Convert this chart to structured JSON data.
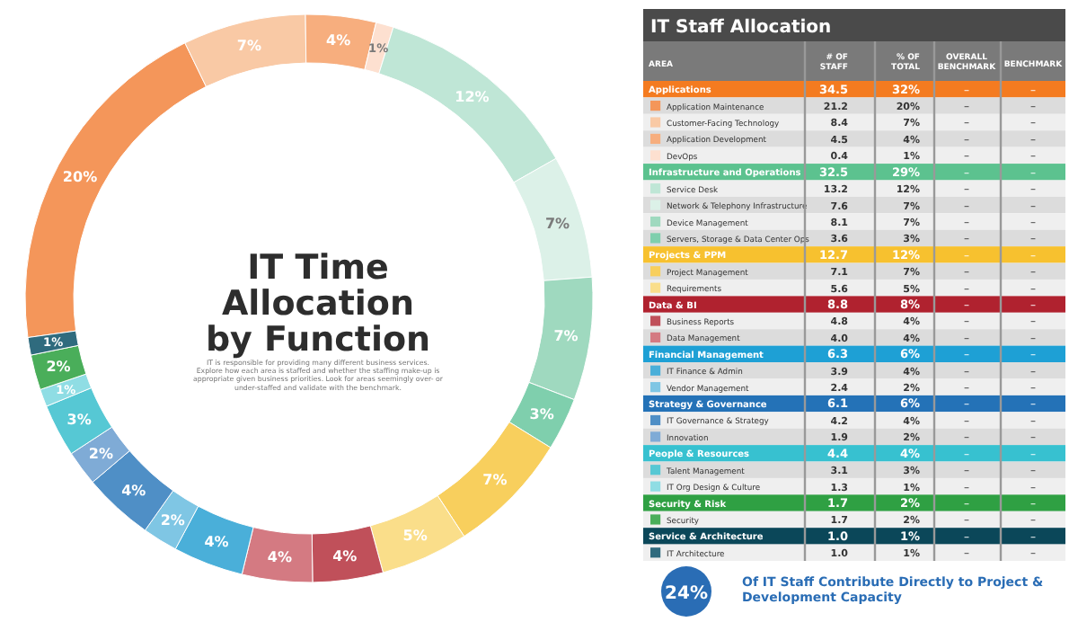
{
  "chart_data": [
    {
      "type": "donut",
      "title": "IT Time Allocation by Function",
      "subtitle": "IT is responsible for providing many different business services. Explore how each area is staffed and whether the staffing make-up is appropriate given business priorities. Look for areas seemingly over- or under-staffed and validate with the benchmark.",
      "categories": [
        null,
        null,
        null,
        null,
        null,
        null,
        null,
        null,
        null,
        null,
        null,
        null,
        null,
        null,
        null,
        null,
        null,
        null,
        null,
        null
      ],
      "values": [
        20,
        7,
        4,
        1,
        12,
        7,
        7,
        3,
        7,
        5,
        4,
        4,
        4,
        2,
        4,
        2,
        3,
        1,
        2,
        1
      ],
      "value_labels": [
        "20%",
        "7%",
        "4%",
        "1%",
        "12%",
        "7%",
        "7%",
        "3%",
        "7%",
        "5%",
        "4%",
        "4%",
        "4%",
        "2%",
        "4%",
        "2%",
        "3%",
        "1%",
        "2%",
        "1%"
      ],
      "colors": [
        "#f4965a",
        "#f9c9a5",
        "#f7ae7e",
        "#fde0d0",
        "#bfe6d6",
        "#dcf1e8",
        "#9fd9bf",
        "#7fcfad",
        "#f8cf5d",
        "#fade8a",
        "#c0505a",
        "#d47a82",
        "#4aafd9",
        "#7fc6e4",
        "#4f8fc6",
        "#7fabd6",
        "#56c8d4",
        "#8fdde4",
        "#4aae5a",
        "#2f6b7e"
      ]
    },
    {
      "type": "other",
      "title": "IT Staff Allocation",
      "xlabel": "AREA",
      "y2_categories": [
        "Applications",
        null,
        null,
        null,
        null,
        "Infrastructure and Operations",
        null,
        null,
        null,
        null,
        "Projects & PPM",
        null,
        null,
        "Data & BI",
        null,
        null,
        "Financial Management",
        null,
        null,
        "Strategy & Governance",
        null,
        null,
        "People & Resources",
        null,
        null,
        "Security & Risk",
        null,
        "Service & Architecture",
        null
      ],
      "categories": [
        null,
        "Application Maintenance",
        "Customer-Facing Technology",
        "Application Development",
        "DevOps",
        null,
        "Service Desk",
        "Network & Telephony Infrastructure",
        "Device Management",
        "Servers, Storage & Data Center Ops",
        null,
        "Project Management",
        "Requirements",
        null,
        "Business Reports",
        "Data Management",
        null,
        "IT Finance & Admin",
        "Vendor Management",
        null,
        "IT Governance & Strategy",
        "Innovation",
        null,
        "Talent Management",
        "IT Org Design & Culture",
        null,
        "Security",
        null,
        "IT Architecture"
      ],
      "colors": [
        "#f47b20",
        "#f4965a",
        "#f9c9a5",
        "#f7ae7e",
        "#fde0d0",
        "#5cc28f",
        "#bfe6d6",
        "#dcf1e8",
        "#9fd9bf",
        "#7fcfad",
        "#f7c12f",
        "#f8cf5d",
        "#fade8a",
        "#b0222f",
        "#c0505a",
        "#d47a82",
        "#1ea0d5",
        "#4aafd9",
        "#7fc6e4",
        "#2472b7",
        "#4f8fc6",
        "#7fabd6",
        "#37c1d0",
        "#56c8d4",
        "#8fdde4",
        "#2fa043",
        "#4aae5a",
        "#0b4759",
        "#2f6b7e"
      ],
      "cell_labels": [
        [
          "34.5",
          "32%",
          "–",
          "–"
        ],
        [
          "21.2",
          "20%",
          "–",
          "–"
        ],
        [
          "8.4",
          "7%",
          "–",
          "–"
        ],
        [
          "4.5",
          "4%",
          "–",
          "–"
        ],
        [
          "0.4",
          "1%",
          "–",
          "–"
        ],
        [
          "32.5",
          "29%",
          "–",
          "–"
        ],
        [
          "13.2",
          "12%",
          "–",
          "–"
        ],
        [
          "7.6",
          "7%",
          "–",
          "–"
        ],
        [
          "8.1",
          "7%",
          "–",
          "–"
        ],
        [
          "3.6",
          "3%",
          "–",
          "–"
        ],
        [
          "12.7",
          "12%",
          "–",
          "–"
        ],
        [
          "7.1",
          "7%",
          "–",
          "–"
        ],
        [
          "5.6",
          "5%",
          "–",
          "–"
        ],
        [
          "8.8",
          "8%",
          "–",
          "–"
        ],
        [
          "4.8",
          "4%",
          "–",
          "–"
        ],
        [
          "4.0",
          "4%",
          "–",
          "–"
        ],
        [
          "6.3",
          "6%",
          "–",
          "–"
        ],
        [
          "3.9",
          "4%",
          "–",
          "–"
        ],
        [
          "2.4",
          "2%",
          "–",
          "–"
        ],
        [
          "6.1",
          "6%",
          "–",
          "–"
        ],
        [
          "4.2",
          "4%",
          "–",
          "–"
        ],
        [
          "1.9",
          "2%",
          "–",
          "–"
        ],
        [
          "4.4",
          "4%",
          "–",
          "–"
        ],
        [
          "3.1",
          "3%",
          "–",
          "–"
        ],
        [
          "1.3",
          "1%",
          "–",
          "–"
        ],
        [
          "1.7",
          "2%",
          "–",
          "–"
        ],
        [
          "1.7",
          "2%",
          "–",
          "–"
        ],
        [
          "1.0",
          "1%",
          "–",
          "–"
        ],
        [
          "1.0",
          "1%",
          "–",
          "–"
        ]
      ],
      "annotations": [
        "# OF STAFF",
        "% OF TOTAL",
        "OVERALL BENCHMARK",
        "BENCHMARK",
        "24%",
        "Of IT Staff Contribute Directly to Project & Development Capacity"
      ]
    }
  ]
}
